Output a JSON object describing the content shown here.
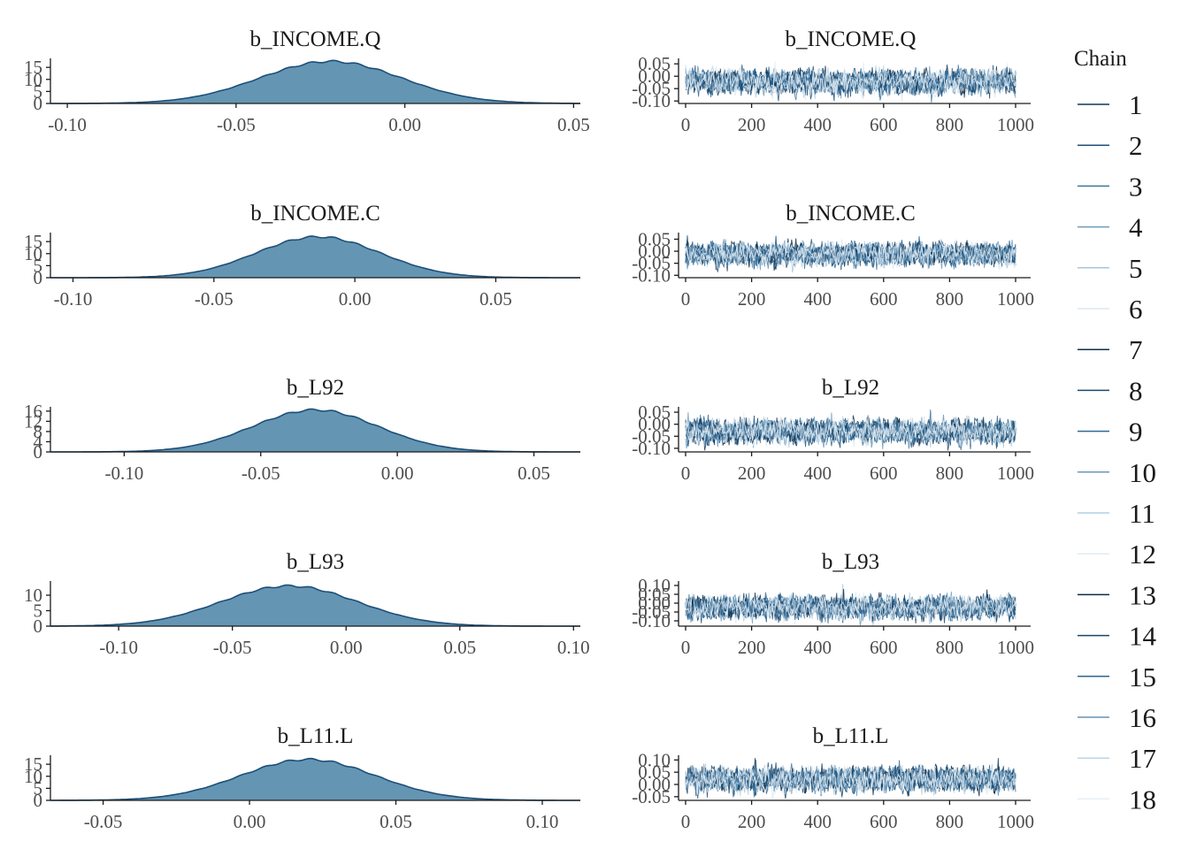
{
  "legend": {
    "title": "Chain",
    "items": [
      {
        "label": "1",
        "color": "#10375a"
      },
      {
        "label": "2",
        "color": "#1d507c"
      },
      {
        "label": "3",
        "color": "#3d77a0"
      },
      {
        "label": "4",
        "color": "#6d9cbd"
      },
      {
        "label": "5",
        "color": "#a9c6dc"
      },
      {
        "label": "6",
        "color": "#dbe7f0"
      },
      {
        "label": "7",
        "color": "#0c2f4f"
      },
      {
        "label": "8",
        "color": "#184a73"
      },
      {
        "label": "9",
        "color": "#2f6a96"
      },
      {
        "label": "10",
        "color": "#6a98ba"
      },
      {
        "label": "11",
        "color": "#b4cfe2"
      },
      {
        "label": "12",
        "color": "#e0ebf3"
      },
      {
        "label": "13",
        "color": "#0a2b48"
      },
      {
        "label": "14",
        "color": "#15476f"
      },
      {
        "label": "15",
        "color": "#2c6591"
      },
      {
        "label": "16",
        "color": "#6593b6"
      },
      {
        "label": "17",
        "color": "#bdd5e6"
      },
      {
        "label": "18",
        "color": "#e5eef5"
      }
    ]
  },
  "chart_data": [
    {
      "type": "area",
      "panel": "density",
      "title": "b_INCOME.Q",
      "mean": -0.022,
      "sd": 0.021,
      "peak": 17.5,
      "xlim": [
        -0.105,
        0.052
      ],
      "ylim": [
        0,
        18
      ],
      "xticks": [
        -0.1,
        -0.05,
        0.0,
        0.05
      ],
      "xtick_labels": [
        "-0.10",
        "-0.05",
        "0.00",
        "0.05"
      ],
      "yticks": [
        0,
        5,
        10,
        15
      ],
      "ytick_labels": [
        "0",
        "5",
        "10",
        "15"
      ],
      "fill": "#6495b3",
      "line": "#1d4f79"
    },
    {
      "type": "line",
      "panel": "trace",
      "title": "b_INCOME.Q",
      "center": -0.022,
      "spread": 0.022,
      "xlim": [
        0,
        1000
      ],
      "ylim": [
        -0.11,
        0.065
      ],
      "xticks": [
        0,
        200,
        400,
        600,
        800,
        1000
      ],
      "xtick_labels": [
        "0",
        "200",
        "400",
        "600",
        "800",
        "1000"
      ],
      "yticks": [
        -0.1,
        -0.05,
        0.0,
        0.05
      ],
      "ytick_labels": [
        "-0.10",
        "-0.05",
        "0.00",
        "0.05"
      ]
    },
    {
      "type": "area",
      "panel": "density",
      "title": "b_INCOME.C",
      "mean": -0.013,
      "sd": 0.022,
      "peak": 17.0,
      "xlim": [
        -0.108,
        0.08
      ],
      "ylim": [
        0,
        18
      ],
      "xticks": [
        -0.1,
        -0.05,
        0.0,
        0.05
      ],
      "xtick_labels": [
        "-0.10",
        "-0.05",
        "0.00",
        "0.05"
      ],
      "yticks": [
        0,
        5,
        10,
        15
      ],
      "ytick_labels": [
        "0",
        "5",
        "10",
        "15"
      ],
      "fill": "#6495b3",
      "line": "#1d4f79"
    },
    {
      "type": "line",
      "panel": "trace",
      "title": "b_INCOME.C",
      "center": -0.013,
      "spread": 0.022,
      "xlim": [
        0,
        1000
      ],
      "ylim": [
        -0.11,
        0.07
      ],
      "xticks": [
        0,
        200,
        400,
        600,
        800,
        1000
      ],
      "xtick_labels": [
        "0",
        "200",
        "400",
        "600",
        "800",
        "1000"
      ],
      "yticks": [
        -0.1,
        -0.05,
        0.0,
        0.05
      ],
      "ytick_labels": [
        "-0.10",
        "-0.05",
        "0.00",
        "0.05"
      ]
    },
    {
      "type": "area",
      "panel": "density",
      "title": "b_L92",
      "mean": -0.03,
      "sd": 0.023,
      "peak": 16.5,
      "xlim": [
        -0.127,
        0.067
      ],
      "ylim": [
        0,
        17
      ],
      "xticks": [
        -0.1,
        -0.05,
        0.0,
        0.05
      ],
      "xtick_labels": [
        "-0.10",
        "-0.05",
        "0.00",
        "0.05"
      ],
      "yticks": [
        0,
        4,
        8,
        12,
        16
      ],
      "ytick_labels": [
        "0",
        "4",
        "8",
        "12",
        "16"
      ],
      "fill": "#6495b3",
      "line": "#1d4f79"
    },
    {
      "type": "line",
      "panel": "trace",
      "title": "b_L92",
      "center": -0.03,
      "spread": 0.023,
      "xlim": [
        0,
        1000
      ],
      "ylim": [
        -0.115,
        0.065
      ],
      "xticks": [
        0,
        200,
        400,
        600,
        800,
        1000
      ],
      "xtick_labels": [
        "0",
        "200",
        "400",
        "600",
        "800",
        "1000"
      ],
      "yticks": [
        -0.1,
        -0.05,
        0.0,
        0.05
      ],
      "ytick_labels": [
        "-0.10",
        "-0.05",
        "0.00",
        "0.05"
      ]
    },
    {
      "type": "area",
      "panel": "density",
      "title": "b_L93",
      "mean": -0.025,
      "sd": 0.03,
      "peak": 13.0,
      "xlim": [
        -0.13,
        0.103
      ],
      "ylim": [
        0,
        14
      ],
      "xticks": [
        -0.1,
        -0.05,
        0.0,
        0.05,
        0.1
      ],
      "xtick_labels": [
        "-0.10",
        "-0.05",
        "0.00",
        "0.05",
        "0.10"
      ],
      "yticks": [
        0,
        5,
        10
      ],
      "ytick_labels": [
        "0",
        "5",
        "10"
      ],
      "fill": "#6495b3",
      "line": "#1d4f79"
    },
    {
      "type": "line",
      "panel": "trace",
      "title": "b_L93",
      "center": -0.025,
      "spread": 0.03,
      "xlim": [
        0,
        1000
      ],
      "ylim": [
        -0.13,
        0.115
      ],
      "xticks": [
        0,
        200,
        400,
        600,
        800,
        1000
      ],
      "xtick_labels": [
        "0",
        "200",
        "400",
        "600",
        "800",
        "1000"
      ],
      "yticks": [
        -0.1,
        -0.05,
        0.0,
        0.05,
        0.1
      ],
      "ytick_labels": [
        "-0.10",
        "-0.05",
        "0.00",
        "0.05",
        "0.10"
      ]
    },
    {
      "type": "area",
      "panel": "density",
      "title": "b_L11.L",
      "mean": 0.02,
      "sd": 0.023,
      "peak": 17.0,
      "xlim": [
        -0.068,
        0.113
      ],
      "ylim": [
        0,
        18
      ],
      "xticks": [
        -0.05,
        0.0,
        0.05,
        0.1
      ],
      "xtick_labels": [
        "-0.05",
        "0.00",
        "0.05",
        "0.10"
      ],
      "yticks": [
        0,
        5,
        10,
        15
      ],
      "ytick_labels": [
        "0",
        "5",
        "10",
        "15"
      ],
      "fill": "#6495b3",
      "line": "#1d4f79"
    },
    {
      "type": "line",
      "panel": "trace",
      "title": "b_L11.L",
      "center": 0.02,
      "spread": 0.023,
      "xlim": [
        0,
        1000
      ],
      "ylim": [
        -0.065,
        0.112
      ],
      "xticks": [
        0,
        200,
        400,
        600,
        800,
        1000
      ],
      "xtick_labels": [
        "0",
        "200",
        "400",
        "600",
        "800",
        "1000"
      ],
      "yticks": [
        -0.05,
        0.0,
        0.05,
        0.1
      ],
      "ytick_labels": [
        "-0.05",
        "0.00",
        "0.05",
        "0.10"
      ]
    }
  ]
}
